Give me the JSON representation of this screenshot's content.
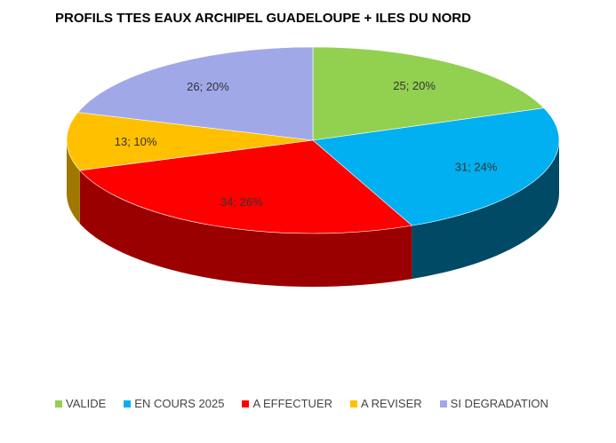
{
  "chart_data": {
    "type": "pie",
    "title": "PROFILS TTES EAUX ARCHIPEL GUADELOUPE + ILES DU NORD",
    "slices": [
      {
        "name": "VALIDE",
        "value": 25,
        "percent": "20%",
        "label": "25; 20%",
        "color": "#92D050",
        "side_color": "#5E8A2E"
      },
      {
        "name": "EN COURS 2025",
        "value": 31,
        "percent": "24%",
        "label": "31; 24%",
        "color": "#00B0F0",
        "side_color": "#004A66"
      },
      {
        "name": "A EFFECTUER",
        "value": 34,
        "percent": "26%",
        "label": "34; 26%",
        "color": "#FF0000",
        "side_color": "#9A0000"
      },
      {
        "name": "A REVISER",
        "value": 13,
        "percent": "10%",
        "label": "13; 10%",
        "color": "#FFC000",
        "side_color": "#A07800"
      },
      {
        "name": "SI DEGRADATION",
        "value": 26,
        "percent": "20%",
        "label": "26; 20%",
        "color": "#A0A8E8",
        "side_color": "#6A70A8"
      }
    ],
    "legend_position": "bottom",
    "style": "3d-pie"
  }
}
